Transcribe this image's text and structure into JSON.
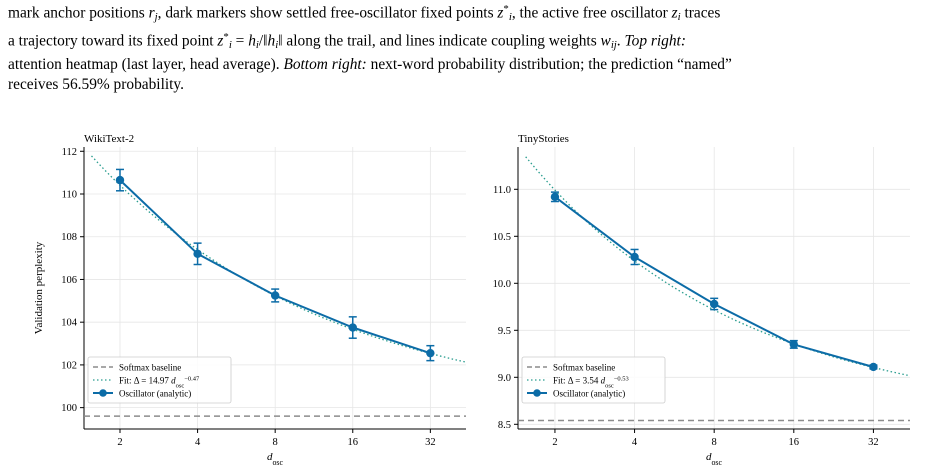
{
  "caption": {
    "line1": "mark anchor positions r_j, dark markers show settled free-oscillator fixed points z*_i, the active free oscillator z_i traces",
    "line2": "a trajectory toward its fixed point z*_i = h_i/‖h_i‖ along the trail, and lines indicate coupling weights w_ij. Top right:",
    "line3": "attention heatmap (last layer, head average). Bottom right: next-word probability distribution; the prediction “named”",
    "line4": "receives 56.59% probability."
  },
  "colors": {
    "series": "#0c6ca7",
    "fit": "#2a9d8f",
    "baseline": "#8c8c8c",
    "grid": "#e6e6e6"
  },
  "chart_data": [
    {
      "type": "line",
      "title": "WikiText-2",
      "xlabel": "d_osc",
      "ylabel": "Validation perplexity",
      "x_scale": "log2",
      "x": [
        2,
        4,
        8,
        16,
        32
      ],
      "x_ticks": [
        "2",
        "4",
        "8",
        "16",
        "32"
      ],
      "xlim": [
        1.45,
        44
      ],
      "ylim": [
        99.0,
        112.2
      ],
      "y_ticks": [
        100,
        102,
        104,
        106,
        108,
        110,
        112
      ],
      "y_tick_labels": [
        "100",
        "102",
        "104",
        "106",
        "108",
        "110",
        "112"
      ],
      "series": [
        {
          "name": "Oscillator (analytic)",
          "values": [
            110.65,
            107.2,
            105.25,
            103.75,
            102.55
          ],
          "errors": [
            0.5,
            0.5,
            0.3,
            0.5,
            0.35
          ]
        }
      ],
      "fit": {
        "name": "Fit: Δ = 14.97 d_osc^−0.47",
        "coef": 14.97,
        "exponent": -0.47,
        "offset": 99.6,
        "x_range": [
          1.55,
          44
        ]
      },
      "baseline": {
        "name": "Softmax baseline",
        "value": 99.6
      },
      "legend": [
        "Softmax baseline",
        "Fit: Δ = 14.97 d_osc^−0.47",
        "Oscillator (analytic)"
      ],
      "legend_position": "lower-left",
      "grid": true
    },
    {
      "type": "line",
      "title": "TinyStories",
      "xlabel": "d_osc",
      "ylabel": "",
      "x_scale": "log2",
      "x": [
        2,
        4,
        8,
        16,
        32
      ],
      "x_ticks": [
        "2",
        "4",
        "8",
        "16",
        "32"
      ],
      "xlim": [
        1.45,
        44
      ],
      "ylim": [
        8.45,
        11.45
      ],
      "y_ticks": [
        8.5,
        9.0,
        9.5,
        10.0,
        10.5,
        11.0
      ],
      "y_tick_labels": [
        "8.5",
        "9.0",
        "9.5",
        "10.0",
        "10.5",
        "11.0"
      ],
      "series": [
        {
          "name": "Oscillator (analytic)",
          "values": [
            10.92,
            10.28,
            9.78,
            9.35,
            9.11
          ],
          "errors": [
            0.05,
            0.08,
            0.06,
            0.04,
            0.02
          ]
        }
      ],
      "fit": {
        "name": "Fit: Δ = 3.54 d_osc^−0.53",
        "coef": 3.54,
        "exponent": -0.53,
        "offset": 8.54,
        "x_range": [
          1.55,
          44
        ]
      },
      "baseline": {
        "name": "Softmax baseline",
        "value": 8.54
      },
      "legend": [
        "Softmax baseline",
        "Fit: Δ = 3.54 d_osc^−0.53",
        "Oscillator (analytic)"
      ],
      "legend_position": "lower-left",
      "grid": true
    }
  ]
}
